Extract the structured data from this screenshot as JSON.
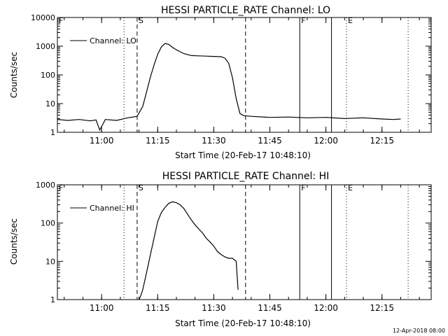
{
  "footer": {
    "timestamp": "12-Apr-2018 08:00"
  },
  "chart_data": [
    {
      "type": "line",
      "title": "HESSI PARTICLE_RATE Channel: LO",
      "xlabel": "Start Time (20-Feb-17 10:48:10)",
      "ylabel": "Counts/sec",
      "y_scale": "log",
      "ylim": [
        1,
        10000
      ],
      "xlim": [
        "10:48:10",
        "12:28:10"
      ],
      "y_tick_labels": [
        "1",
        "10",
        "100",
        "1000",
        "10000"
      ],
      "x_tick_labels": [
        "11:00",
        "11:15",
        "11:30",
        "11:45",
        "12:00",
        "12:15"
      ],
      "legend": {
        "placement": "top-left",
        "entries": [
          {
            "label": "Channel: LO"
          }
        ]
      },
      "markers": [
        {
          "label": "F",
          "time": "10:48:10",
          "style": "dotted"
        },
        {
          "label": "",
          "time": "11:06:00",
          "style": "dotted"
        },
        {
          "label": "S",
          "time": "11:09:30",
          "style": "dashed"
        },
        {
          "label": "",
          "time": "11:38:30",
          "style": "dashed"
        },
        {
          "label": "F",
          "time": "11:53:00",
          "style": "solid"
        },
        {
          "label": "",
          "time": "12:01:30",
          "style": "solid"
        },
        {
          "label": "E",
          "time": "12:05:30",
          "style": "dotted"
        },
        {
          "label": "",
          "time": "12:22:00",
          "style": "dotted"
        }
      ],
      "series": [
        {
          "name": "Channel: LO",
          "x": [
            "10:48:10",
            "10:51:00",
            "10:54:00",
            "10:57:00",
            "10:58:30",
            "10:59:30",
            "11:01:00",
            "11:04:00",
            "11:07:00",
            "11:09:30",
            "11:11:00",
            "11:12:00",
            "11:13:00",
            "11:14:00",
            "11:15:00",
            "11:16:00",
            "11:17:00",
            "11:18:00",
            "11:19:00",
            "11:20:00",
            "11:22:00",
            "11:24:00",
            "11:26:00",
            "11:28:00",
            "11:30:00",
            "11:32:00",
            "11:33:00",
            "11:34:00",
            "11:35:00",
            "11:36:00",
            "11:37:00",
            "11:38:00",
            "11:40:00",
            "11:45:00",
            "11:50:00",
            "11:55:00",
            "12:00:00",
            "12:05:00",
            "12:10:00",
            "12:15:00",
            "12:18:00",
            "12:20:00"
          ],
          "y": [
            2.8,
            2.6,
            2.8,
            2.5,
            2.7,
            1.2,
            2.8,
            2.6,
            3.2,
            3.6,
            8,
            25,
            80,
            220,
            520,
            950,
            1250,
            1150,
            900,
            750,
            550,
            470,
            460,
            450,
            440,
            430,
            380,
            250,
            80,
            15,
            4.5,
            3.8,
            3.6,
            3.3,
            3.4,
            3.2,
            3.3,
            3.0,
            3.2,
            2.9,
            2.8,
            2.9
          ]
        }
      ]
    },
    {
      "type": "line",
      "title": "HESSI PARTICLE_RATE Channel: HI",
      "xlabel": "Start Time (20-Feb-17 10:48:10)",
      "ylabel": "Counts/sec",
      "y_scale": "log",
      "ylim": [
        1,
        1000
      ],
      "xlim": [
        "10:48:10",
        "12:28:10"
      ],
      "y_tick_labels": [
        "1",
        "10",
        "100",
        "1000"
      ],
      "x_tick_labels": [
        "11:00",
        "11:15",
        "11:30",
        "11:45",
        "12:00",
        "12:15"
      ],
      "legend": {
        "placement": "top-left",
        "entries": [
          {
            "label": "Channel: HI"
          }
        ]
      },
      "markers": [
        {
          "label": "F",
          "time": "10:48:10",
          "style": "dotted"
        },
        {
          "label": "",
          "time": "11:06:00",
          "style": "dotted"
        },
        {
          "label": "S",
          "time": "11:09:30",
          "style": "dashed"
        },
        {
          "label": "",
          "time": "11:38:30",
          "style": "dashed"
        },
        {
          "label": "F",
          "time": "11:53:00",
          "style": "solid"
        },
        {
          "label": "",
          "time": "12:01:30",
          "style": "solid"
        },
        {
          "label": "E",
          "time": "12:05:30",
          "style": "dotted"
        },
        {
          "label": "",
          "time": "12:22:00",
          "style": "dotted"
        }
      ],
      "series": [
        {
          "name": "Channel: HI",
          "x": [
            "11:10:00",
            "11:10:30",
            "11:11:00",
            "11:11:30",
            "11:12:00",
            "11:13:00",
            "11:14:00",
            "11:15:00",
            "11:16:00",
            "11:17:00",
            "11:18:00",
            "11:19:00",
            "11:20:00",
            "11:21:00",
            "11:22:00",
            "11:23:00",
            "11:24:00",
            "11:25:00",
            "11:26:00",
            "11:27:00",
            "11:28:00",
            "11:29:00",
            "11:30:00",
            "11:31:00",
            "11:32:00",
            "11:33:00",
            "11:34:00",
            "11:35:00",
            "11:36:00",
            "11:36:30"
          ],
          "y": [
            1.0,
            1.3,
            1.8,
            3,
            5,
            14,
            40,
            110,
            190,
            260,
            330,
            360,
            340,
            300,
            240,
            170,
            120,
            90,
            70,
            55,
            40,
            32,
            25,
            18,
            15,
            13,
            12,
            12,
            10,
            1.8
          ]
        }
      ]
    }
  ]
}
